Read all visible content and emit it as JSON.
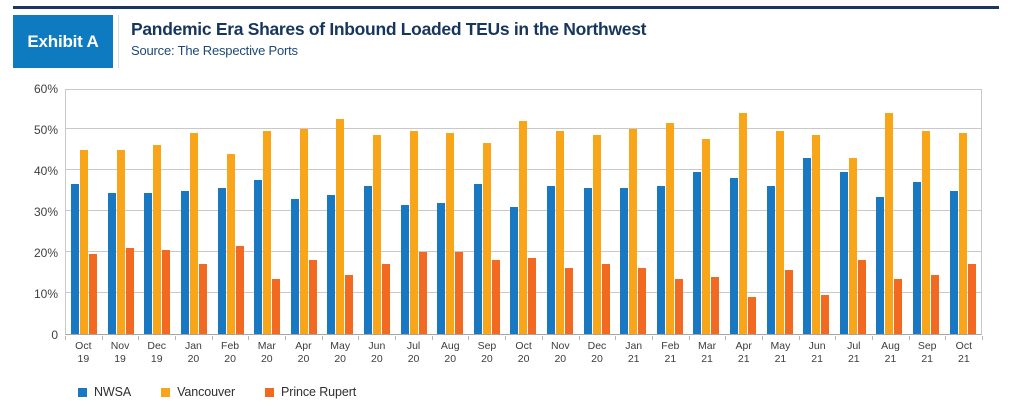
{
  "header": {
    "exhibit_label": "Exhibit A",
    "title": "Pandemic Era Shares of Inbound Loaded TEUs in the Northwest",
    "subtitle": "Source: The Respective Ports"
  },
  "colors": {
    "top_rule": "#1b3661",
    "exhibit_box": "#0e7ac0",
    "exhibit_text": "#ffffff",
    "title_text": "#17365d",
    "subtitle_text": "#1d4976",
    "gridline": "#c9c9c9",
    "axis_text": "#404040",
    "nwsa_blue": "#1878c2",
    "vancouver_orange": "#f9a51a",
    "prince_rupert_orange": "#f26a21"
  },
  "chart_data": {
    "type": "bar",
    "title": "Pandemic Era Shares of Inbound Loaded TEUs in the Northwest",
    "subtitle": "Source: The Respective Ports",
    "xlabel": "",
    "ylabel": "",
    "ylim": [
      0,
      60
    ],
    "ytick_step": 10,
    "yticks": [
      "60%",
      "50%",
      "40%",
      "30%",
      "20%",
      "10%",
      "0"
    ],
    "grid": true,
    "legend_position": "bottom-left",
    "categories": [
      "Oct 19",
      "Nov 19",
      "Dec 19",
      "Jan 20",
      "Feb 20",
      "Mar 20",
      "Apr 20",
      "May 20",
      "Jun 20",
      "Jul 20",
      "Aug 20",
      "Sep 20",
      "Oct 20",
      "Nov 20",
      "Dec 20",
      "Jan 21",
      "Feb 21",
      "Mar 21",
      "Apr 21",
      "May 21",
      "Jun 21",
      "Jul 21",
      "Aug 21",
      "Sep 21",
      "Oct 21"
    ],
    "series": [
      {
        "name": "NWSA",
        "color": "#1878c2",
        "values": [
          36.5,
          34.5,
          34.5,
          35,
          35.5,
          37.5,
          33,
          34,
          36,
          31.5,
          32,
          36.5,
          31,
          36,
          35.5,
          35.5,
          36,
          39.5,
          38,
          36,
          43,
          39.5,
          33.5,
          37,
          35
        ]
      },
      {
        "name": "Vancouver",
        "color": "#f9a51a",
        "values": [
          45,
          45,
          46,
          49,
          44,
          49.5,
          50,
          52.5,
          48.5,
          49.5,
          49,
          46.5,
          52,
          49.5,
          48.5,
          50,
          51.5,
          47.5,
          54,
          49.5,
          48.5,
          43,
          54,
          49.5,
          49
        ]
      },
      {
        "name": "Prince Rupert",
        "color": "#f26a21",
        "values": [
          19.5,
          21,
          20.5,
          17,
          21.5,
          13.5,
          18,
          14.5,
          17,
          20,
          20,
          18,
          18.5,
          16,
          17,
          16,
          13.5,
          14,
          9,
          15.5,
          9.5,
          18,
          13.5,
          14.5,
          17
        ]
      }
    ]
  }
}
